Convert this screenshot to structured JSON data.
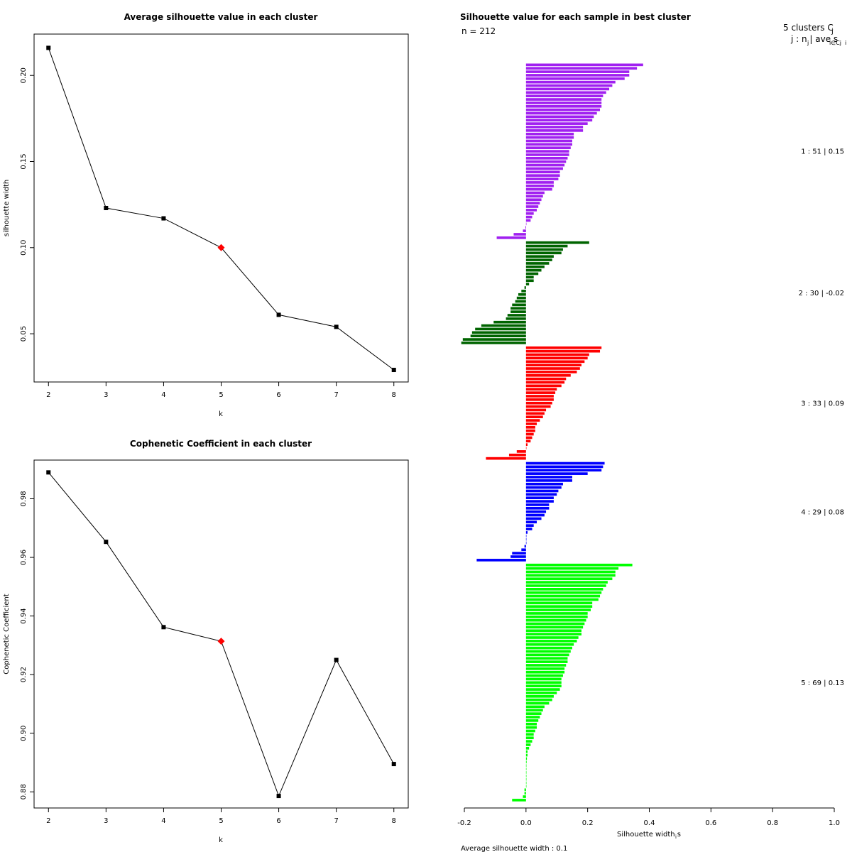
{
  "colors": {
    "line": "#000000",
    "marker": "#000000",
    "highlight": "#ff0000",
    "clusters": [
      "#a020f0",
      "#006400",
      "#ff0000",
      "#0000ff",
      "#00ff00"
    ]
  },
  "chart_data": [
    {
      "type": "line",
      "title": "Average silhouette value in each cluster",
      "xlabel": "k",
      "ylabel": "silhouette width",
      "x": [
        2,
        3,
        4,
        5,
        6,
        7,
        8
      ],
      "values": [
        0.216,
        0.123,
        0.117,
        0.1,
        0.061,
        0.054,
        0.029
      ],
      "highlight_k": 5,
      "xlim": [
        1.75,
        8.25
      ],
      "ylim": [
        0.022,
        0.224
      ],
      "xticks": [
        "2",
        "3",
        "4",
        "5",
        "6",
        "7",
        "8"
      ],
      "yticks": [
        "0.05",
        "0.10",
        "0.15",
        "0.20"
      ]
    },
    {
      "type": "line",
      "title": "Cophenetic Coefficient in each cluster",
      "xlabel": "k",
      "ylabel": "Cophenetic Coefficient",
      "x": [
        2,
        3,
        4,
        5,
        6,
        7,
        8
      ],
      "values": [
        0.989,
        0.9653,
        0.9362,
        0.9314,
        0.8786,
        0.925,
        0.8895
      ],
      "highlight_k": 5,
      "xlim": [
        1.75,
        8.25
      ],
      "ylim": [
        0.8745,
        0.9932
      ],
      "xticks": [
        "2",
        "3",
        "4",
        "5",
        "6",
        "7",
        "8"
      ],
      "yticks": [
        "0.88",
        "0.90",
        "0.92",
        "0.94",
        "0.96",
        "0.98"
      ]
    },
    {
      "type": "bar",
      "orientation": "horizontal",
      "title": "Silhouette value for each sample in best cluster",
      "n_label": "n = 212",
      "xlabel_main": "Silhouette width s",
      "xlabel_sub": "i",
      "xlim": [
        -0.2,
        1.0
      ],
      "xticks": [
        "-0.2",
        "0.0",
        "0.2",
        "0.4",
        "0.6",
        "0.8",
        "1.0"
      ],
      "avg_label": "Average silhouette width :  0.1",
      "legend_title": "5  clusters  C",
      "legend_title_sub": "j",
      "legend_header": "j :  n  | ave    s",
      "legend_header_subs": [
        "j",
        "i∈Cj",
        "i"
      ],
      "clusters": [
        {
          "label": "1 :   51  |  0.15",
          "values": [
            0.38,
            0.36,
            0.335,
            0.335,
            0.32,
            0.29,
            0.28,
            0.27,
            0.26,
            0.25,
            0.245,
            0.245,
            0.245,
            0.24,
            0.23,
            0.22,
            0.215,
            0.2,
            0.185,
            0.185,
            0.155,
            0.155,
            0.15,
            0.15,
            0.145,
            0.14,
            0.14,
            0.135,
            0.13,
            0.125,
            0.12,
            0.11,
            0.11,
            0.105,
            0.09,
            0.09,
            0.085,
            0.06,
            0.055,
            0.05,
            0.045,
            0.04,
            0.035,
            0.025,
            0.02,
            0.015,
            0.0,
            -0.002,
            -0.01,
            -0.04,
            -0.095
          ]
        },
        {
          "label": "2 :   30  |  -0.02",
          "values": [
            0.205,
            0.135,
            0.12,
            0.115,
            0.09,
            0.085,
            0.075,
            0.06,
            0.05,
            0.04,
            0.025,
            0.025,
            0.01,
            -0.005,
            -0.015,
            -0.025,
            -0.03,
            -0.035,
            -0.045,
            -0.05,
            -0.05,
            -0.06,
            -0.065,
            -0.105,
            -0.145,
            -0.165,
            -0.175,
            -0.18,
            -0.205,
            -0.21
          ]
        },
        {
          "label": "3 :   33  |  0.09",
          "values": [
            0.245,
            0.24,
            0.205,
            0.2,
            0.19,
            0.18,
            0.175,
            0.165,
            0.145,
            0.13,
            0.125,
            0.115,
            0.1,
            0.095,
            0.09,
            0.09,
            0.085,
            0.08,
            0.065,
            0.06,
            0.055,
            0.045,
            0.035,
            0.03,
            0.03,
            0.025,
            0.02,
            0.015,
            0.005,
            0.0,
            -0.03,
            -0.055,
            -0.13
          ]
        },
        {
          "label": "4 :   29  |  0.08",
          "values": [
            0.255,
            0.25,
            0.245,
            0.2,
            0.15,
            0.15,
            0.12,
            0.115,
            0.105,
            0.1,
            0.09,
            0.09,
            0.075,
            0.075,
            0.065,
            0.06,
            0.05,
            0.035,
            0.025,
            0.02,
            0.005,
            0.0,
            0.0,
            0.0,
            -0.005,
            -0.015,
            -0.045,
            -0.05,
            -0.16
          ]
        },
        {
          "label": "5 :   69  |  0.13",
          "values": [
            0.345,
            0.3,
            0.29,
            0.29,
            0.28,
            0.265,
            0.26,
            0.25,
            0.245,
            0.24,
            0.235,
            0.215,
            0.215,
            0.21,
            0.2,
            0.2,
            0.195,
            0.19,
            0.185,
            0.18,
            0.18,
            0.17,
            0.165,
            0.155,
            0.15,
            0.145,
            0.14,
            0.135,
            0.135,
            0.13,
            0.125,
            0.125,
            0.12,
            0.115,
            0.115,
            0.115,
            0.11,
            0.1,
            0.09,
            0.085,
            0.075,
            0.06,
            0.055,
            0.05,
            0.045,
            0.04,
            0.035,
            0.035,
            0.03,
            0.025,
            0.025,
            0.02,
            0.015,
            0.01,
            0.005,
            0.005,
            0.003,
            0.002,
            0.001,
            0.001,
            0.0,
            0.0,
            0.0,
            0.0,
            0.0,
            -0.005,
            -0.005,
            -0.01,
            -0.045
          ]
        }
      ]
    }
  ]
}
